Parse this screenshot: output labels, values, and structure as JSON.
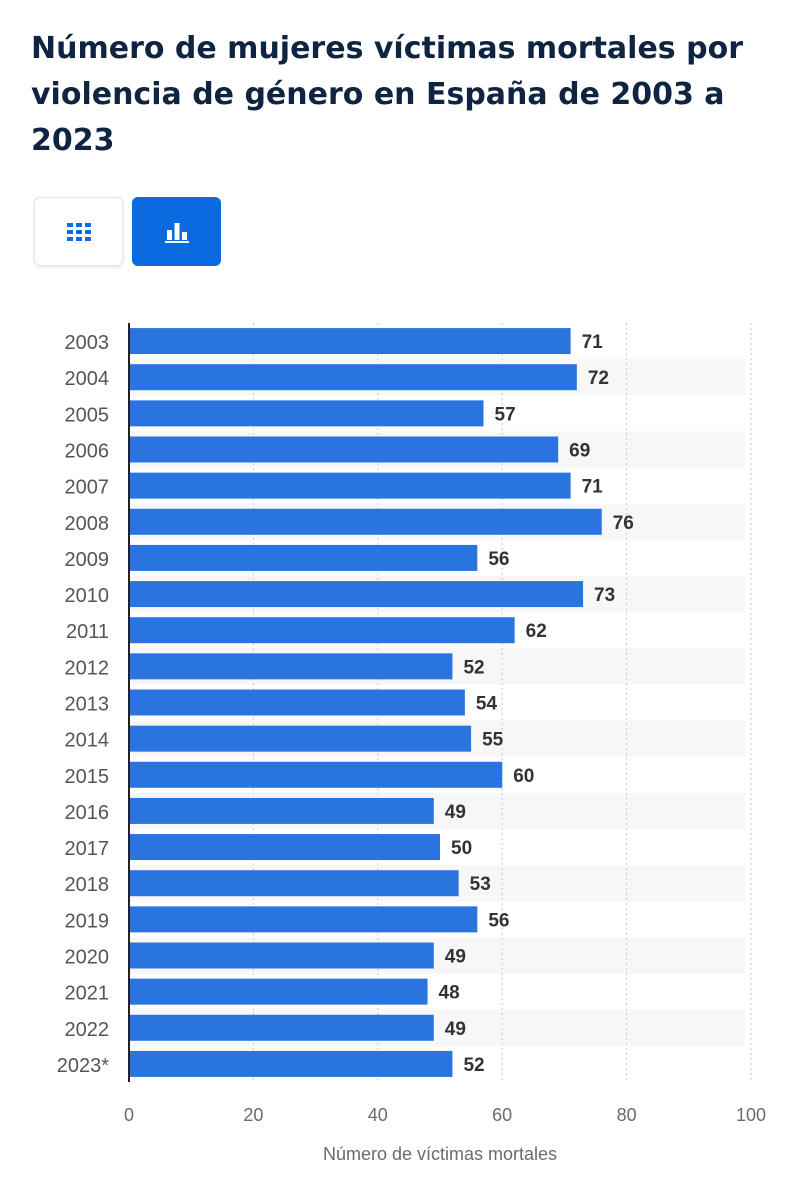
{
  "title": "Número de mujeres víctimas mortales por violencia de género en España de 2003 a 2023",
  "buttons": {
    "table_icon": "grid-icon",
    "chart_icon": "bar-chart-icon",
    "active_color": "#0b6ae0"
  },
  "chart_data": {
    "type": "bar",
    "orientation": "horizontal",
    "title": "Número de mujeres víctimas mortales por violencia de género en España de 2003 a 2023",
    "categories": [
      "2003",
      "2004",
      "2005",
      "2006",
      "2007",
      "2008",
      "2009",
      "2010",
      "2011",
      "2012",
      "2013",
      "2014",
      "2015",
      "2016",
      "2017",
      "2018",
      "2019",
      "2020",
      "2021",
      "2022",
      "2023*"
    ],
    "values": [
      71,
      72,
      57,
      69,
      71,
      76,
      56,
      73,
      62,
      52,
      54,
      55,
      60,
      49,
      50,
      53,
      56,
      49,
      48,
      49,
      52
    ],
    "xlabel": "Número de víctimas mortales",
    "ylabel": "",
    "xlim": [
      0,
      100
    ],
    "xticks": [
      0,
      20,
      40,
      60,
      80,
      100
    ],
    "bar_color": "#2a74e0",
    "grid": true,
    "legend": "none"
  }
}
